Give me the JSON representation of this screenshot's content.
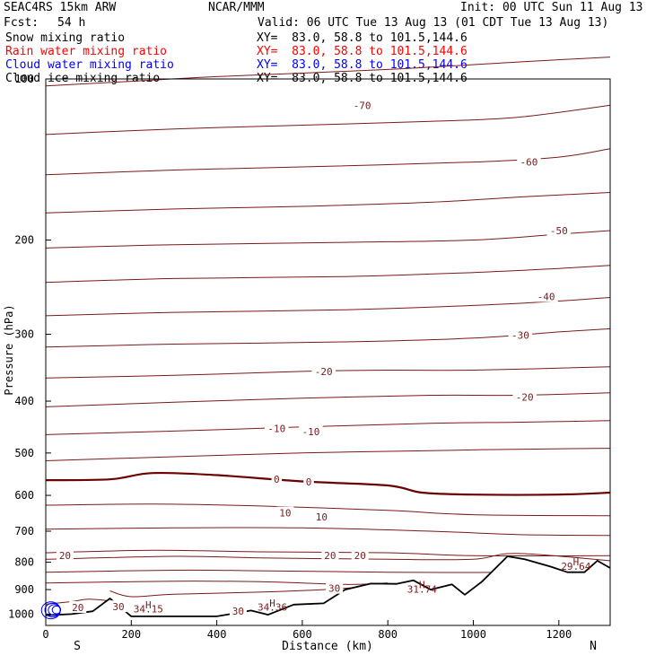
{
  "header": {
    "model": "SEAC4RS 15km ARW",
    "org": "NCAR/MMM",
    "init": "Init: 00 UTC Sun 11 Aug 13",
    "fcst_label": "Fcst:",
    "fcst_value": "54 h",
    "valid": "Valid: 06 UTC Tue 13 Aug 13 (01 CDT Tue 13 Aug 13)"
  },
  "legend": [
    {
      "name": "Snow mixing ratio",
      "xy": "XY=  83.0, 58.8 to 101.5,144.6",
      "color": "#000000"
    },
    {
      "name": "Rain water mixing ratio",
      "xy": "XY=  83.0, 58.8 to 101.5,144.6",
      "color": "#ff0000"
    },
    {
      "name": "Cloud water mixing ratio",
      "xy": "XY=  83.0, 58.8 to 101.5,144.6",
      "color": "#0000ff"
    },
    {
      "name": "Cloud ice mixing ratio",
      "xy": "XY=  83.0, 58.8 to 101.5,144.6",
      "color": "#000000"
    }
  ],
  "colors": {
    "isotherm": "#7a1a1a",
    "freezing": "#6b0000",
    "terrain": "#000000",
    "cloud_water": "#0000ff",
    "frame": "#000000"
  },
  "chart_data": {
    "type": "line",
    "xlabel": "Distance (km)",
    "ylabel": "Pressure (hPa)",
    "xlim": [
      0,
      1320
    ],
    "ylim": [
      1050,
      100
    ],
    "y_scale": "log-pressure (inverted)",
    "xticks": [
      "0",
      "200",
      "400",
      "600",
      "800",
      "1000",
      "1200"
    ],
    "yticks": [
      "100",
      "200",
      "300",
      "400",
      "500",
      "600",
      "700",
      "800",
      "900",
      "1000"
    ],
    "x_end_labels": {
      "left": "S",
      "right": "N"
    },
    "grid": false,
    "isotherms": [
      {
        "temp": -70,
        "points": [
          [
            0,
            103
          ],
          [
            200,
            101
          ],
          [
            400,
            99
          ],
          [
            800,
            96
          ],
          [
            1100,
            93
          ],
          [
            1320,
            91
          ]
        ]
      },
      {
        "temp": -60,
        "points": [
          [
            0,
            127
          ],
          [
            300,
            124
          ],
          [
            600,
            122
          ],
          [
            900,
            120
          ],
          [
            1100,
            118
          ],
          [
            1320,
            112
          ]
        ]
      },
      {
        "temp": -60,
        "points": [
          [
            0,
            151
          ],
          [
            300,
            148
          ],
          [
            600,
            146
          ],
          [
            1000,
            143
          ],
          [
            1200,
            140
          ],
          [
            1320,
            135
          ]
        ]
      },
      {
        "temp": -50,
        "points": [
          [
            0,
            178
          ],
          [
            300,
            175
          ],
          [
            600,
            173
          ],
          [
            900,
            170
          ],
          [
            1120,
            166
          ],
          [
            1320,
            163
          ]
        ]
      },
      {
        "temp": -50,
        "points": [
          [
            0,
            207
          ],
          [
            300,
            204
          ],
          [
            700,
            202
          ],
          [
            1000,
            200
          ],
          [
            1200,
            195
          ],
          [
            1320,
            192
          ]
        ]
      },
      {
        "temp": -40,
        "points": [
          [
            0,
            240
          ],
          [
            300,
            236
          ],
          [
            700,
            234
          ],
          [
            1000,
            230
          ],
          [
            1200,
            226
          ],
          [
            1320,
            223
          ]
        ]
      },
      {
        "temp": -30,
        "points": [
          [
            0,
            277
          ],
          [
            300,
            273
          ],
          [
            700,
            270
          ],
          [
            1000,
            265
          ],
          [
            1200,
            260
          ],
          [
            1320,
            256
          ]
        ]
      },
      {
        "temp": -30,
        "points": [
          [
            0,
            317
          ],
          [
            300,
            313
          ],
          [
            700,
            310
          ],
          [
            1000,
            305
          ],
          [
            1200,
            297
          ],
          [
            1320,
            293
          ]
        ]
      },
      {
        "temp": -20,
        "points": [
          [
            0,
            362
          ],
          [
            300,
            358
          ],
          [
            600,
            352
          ],
          [
            800,
            350
          ],
          [
            1000,
            350
          ],
          [
            1320,
            345
          ]
        ]
      },
      {
        "temp": -20,
        "points": [
          [
            0,
            410
          ],
          [
            300,
            402
          ],
          [
            600,
            395
          ],
          [
            900,
            390
          ],
          [
            1100,
            390
          ],
          [
            1320,
            386
          ]
        ]
      },
      {
        "temp": -10,
        "points": [
          [
            0,
            462
          ],
          [
            300,
            455
          ],
          [
            600,
            447
          ],
          [
            900,
            440
          ],
          [
            1100,
            438
          ],
          [
            1320,
            435
          ]
        ]
      },
      {
        "temp": -10,
        "points": [
          [
            0,
            517
          ],
          [
            300,
            508
          ],
          [
            600,
            500
          ],
          [
            900,
            495
          ],
          [
            1100,
            492
          ],
          [
            1320,
            490
          ]
        ]
      },
      {
        "temp": 0,
        "points": [
          [
            0,
            562
          ],
          [
            150,
            560
          ],
          [
            250,
            545
          ],
          [
            400,
            550
          ],
          [
            600,
            565
          ],
          [
            800,
            575
          ],
          [
            880,
            593
          ],
          [
            1000,
            598
          ],
          [
            1200,
            598
          ],
          [
            1320,
            593
          ]
        ]
      },
      {
        "temp": 10,
        "points": [
          [
            0,
            626
          ],
          [
            250,
            623
          ],
          [
            500,
            628
          ],
          [
            800,
            640
          ],
          [
            1000,
            652
          ],
          [
            1320,
            655
          ]
        ]
      },
      {
        "temp": 10,
        "points": [
          [
            0,
            694
          ],
          [
            300,
            690
          ],
          [
            600,
            690
          ],
          [
            900,
            700
          ],
          [
            1100,
            710
          ],
          [
            1320,
            713
          ]
        ]
      },
      {
        "temp": 20,
        "points": [
          [
            0,
            768
          ],
          [
            250,
            760
          ],
          [
            500,
            765
          ],
          [
            800,
            768
          ],
          [
            1000,
            778
          ],
          [
            1320,
            778
          ]
        ]
      },
      {
        "temp": 20,
        "points": [
          [
            0,
            790
          ],
          [
            300,
            780
          ],
          [
            500,
            785
          ],
          [
            800,
            790
          ],
          [
            1000,
            790
          ],
          [
            1100,
            770
          ],
          [
            1320,
            795
          ]
        ]
      },
      {
        "temp": 30,
        "points": [
          [
            0,
            835
          ],
          [
            300,
            828
          ],
          [
            500,
            830
          ],
          [
            800,
            835
          ],
          [
            1000,
            836
          ],
          [
            1200,
            834
          ]
        ]
      },
      {
        "temp": 30,
        "points": [
          [
            0,
            875
          ],
          [
            300,
            868
          ],
          [
            500,
            870
          ],
          [
            700,
            880
          ],
          [
            800,
            875
          ]
        ]
      },
      {
        "temp": 30,
        "points": [
          [
            150,
            905
          ],
          [
            200,
            928
          ],
          [
            300,
            918
          ],
          [
            500,
            910
          ],
          [
            650,
            900
          ],
          [
            740,
            890
          ]
        ]
      },
      {
        "temp": 20,
        "points": [
          [
            0,
            958
          ],
          [
            60,
            948
          ],
          [
            100,
            938
          ],
          [
            150,
            945
          ]
        ]
      }
    ],
    "terrain": [
      [
        0,
        1005
      ],
      [
        60,
        1000
      ],
      [
        110,
        988
      ],
      [
        150,
        935
      ],
      [
        200,
        1010
      ],
      [
        400,
        1010
      ],
      [
        480,
        985
      ],
      [
        520,
        1003
      ],
      [
        580,
        960
      ],
      [
        650,
        955
      ],
      [
        700,
        900
      ],
      [
        760,
        877
      ],
      [
        820,
        878
      ],
      [
        860,
        865
      ],
      [
        900,
        900
      ],
      [
        950,
        880
      ],
      [
        980,
        920
      ],
      [
        1020,
        870
      ],
      [
        1080,
        780
      ],
      [
        1120,
        790
      ],
      [
        1180,
        815
      ],
      [
        1220,
        835
      ],
      [
        1260,
        835
      ],
      [
        1290,
        795
      ],
      [
        1320,
        820
      ]
    ],
    "cloud_water_rings": [
      [
        25,
        982,
        10
      ],
      [
        20,
        983,
        14
      ],
      [
        16,
        983,
        18
      ],
      [
        12,
        984,
        22
      ]
    ],
    "annotations": [
      {
        "text": "H",
        "x": 240,
        "p": 975
      },
      {
        "text": "34.15",
        "x": 240,
        "p": 992
      },
      {
        "text": "H",
        "x": 530,
        "p": 968
      },
      {
        "text": "34.36",
        "x": 530,
        "p": 985
      },
      {
        "text": "H",
        "x": 880,
        "p": 895
      },
      {
        "text": "31.74",
        "x": 880,
        "p": 912
      },
      {
        "text": "H",
        "x": 1240,
        "p": 810
      },
      {
        "text": "29.64",
        "x": 1240,
        "p": 826
      }
    ],
    "contour_labels": [
      {
        "text": "-70",
        "x": 740,
        "p": 112
      },
      {
        "text": "-60",
        "x": 1130,
        "p": 143
      },
      {
        "text": "-50",
        "x": 1200,
        "p": 192
      },
      {
        "text": "-40",
        "x": 1170,
        "p": 255
      },
      {
        "text": "-30",
        "x": 1110,
        "p": 301
      },
      {
        "text": "-20",
        "x": 650,
        "p": 352
      },
      {
        "text": "-20",
        "x": 1120,
        "p": 393
      },
      {
        "text": "-10",
        "x": 540,
        "p": 450
      },
      {
        "text": "-10",
        "x": 620,
        "p": 456
      },
      {
        "text": "0",
        "x": 540,
        "p": 560
      },
      {
        "text": "0",
        "x": 615,
        "p": 566
      },
      {
        "text": "10",
        "x": 560,
        "p": 647
      },
      {
        "text": "10",
        "x": 645,
        "p": 658
      },
      {
        "text": "20",
        "x": 45,
        "p": 777
      },
      {
        "text": "20",
        "x": 665,
        "p": 777
      },
      {
        "text": "20",
        "x": 735,
        "p": 777
      },
      {
        "text": "30",
        "x": 675,
        "p": 895
      },
      {
        "text": "30",
        "x": 170,
        "p": 969
      },
      {
        "text": "30",
        "x": 450,
        "p": 988
      },
      {
        "text": "20",
        "x": 75,
        "p": 972
      }
    ]
  }
}
